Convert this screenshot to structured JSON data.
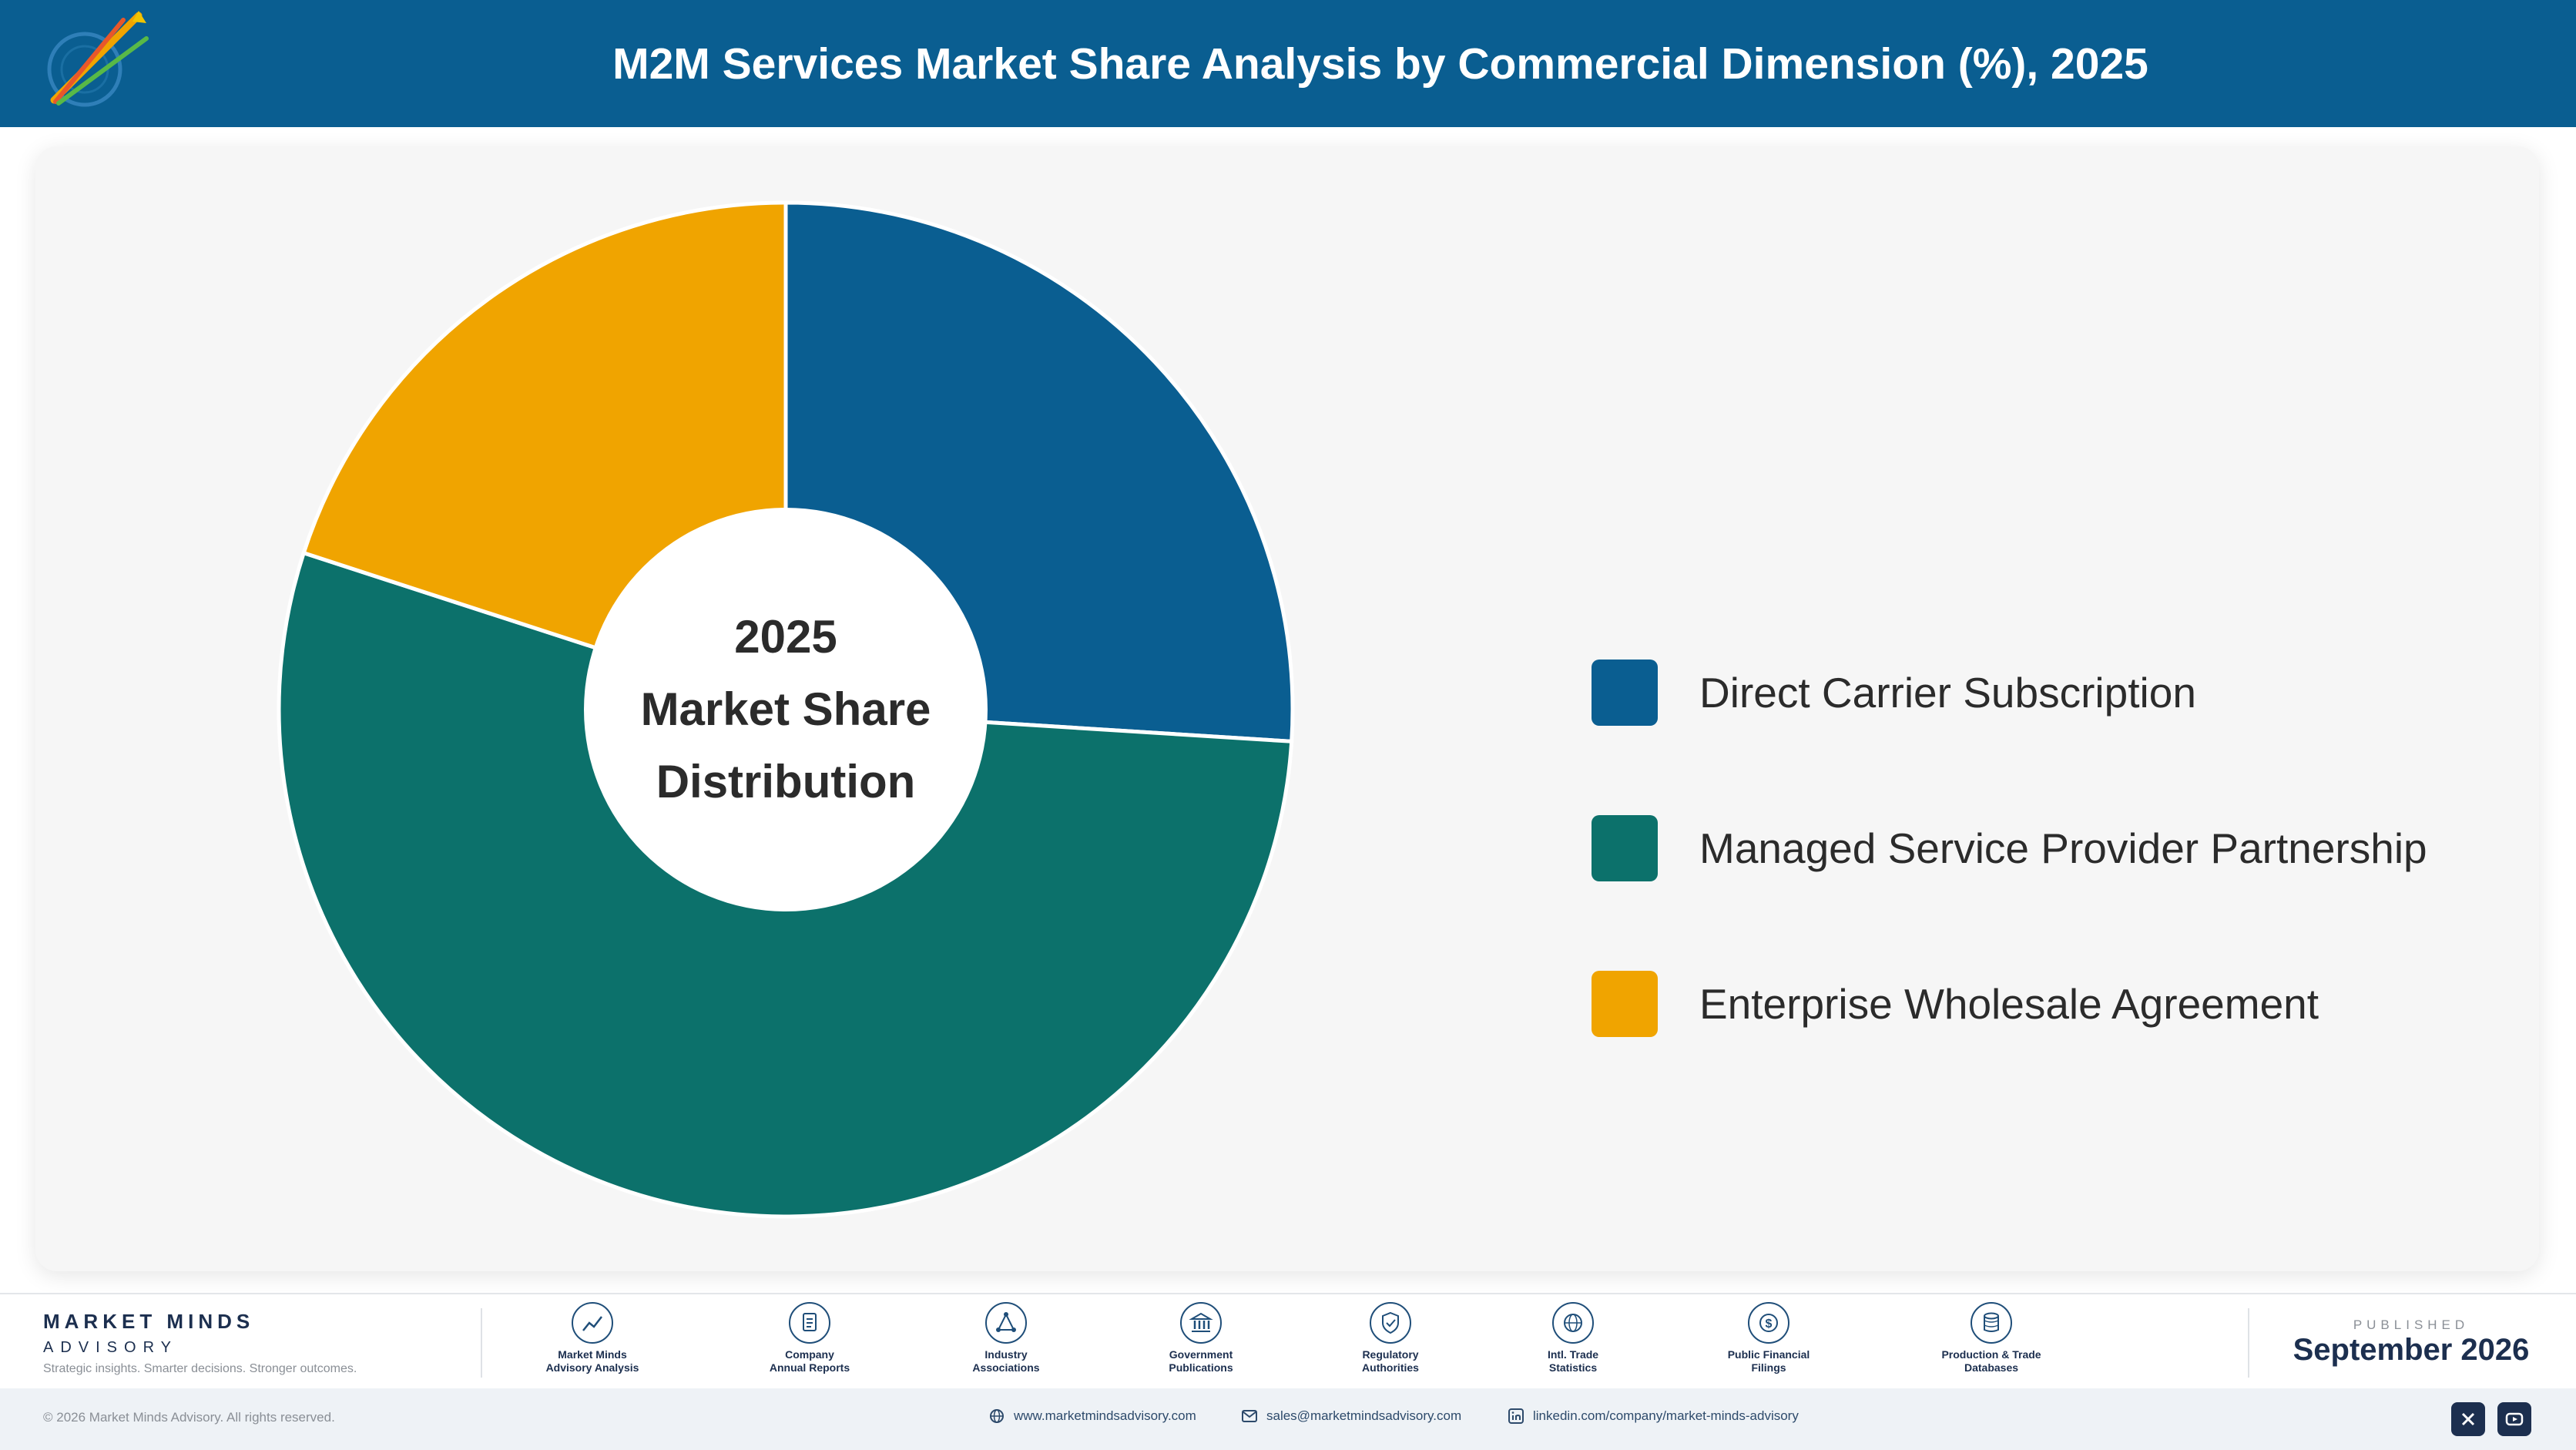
{
  "header": {
    "title": "M2M Services Market Share Analysis by Commercial Dimension (%), 2025"
  },
  "chart_data": {
    "type": "pie",
    "center_label": [
      "2025",
      "Market Share",
      "Distribution"
    ],
    "categories": [
      "Direct Carrier Subscription",
      "Managed Service Provider Partnership",
      "Enterprise Wholesale Agreement"
    ],
    "values": [
      26,
      54,
      20
    ],
    "colors": [
      "#0a5e91",
      "#0c716b",
      "#f0a400"
    ],
    "donut": true,
    "legend_position": "right"
  },
  "footer": {
    "brand_name": "MARKET MINDS",
    "brand_sub": "ADVISORY",
    "tagline": "Strategic insights. Smarter decisions. Stronger outcomes.",
    "sources": [
      {
        "label": "Market Minds\nAdvisory Analysis",
        "icon": "trend-icon"
      },
      {
        "label": "Company\nAnnual Reports",
        "icon": "document-icon"
      },
      {
        "label": "Industry\nAssociations",
        "icon": "network-icon"
      },
      {
        "label": "Government\nPublications",
        "icon": "building-icon"
      },
      {
        "label": "Regulatory\nAuthorities",
        "icon": "shield-icon"
      },
      {
        "label": "Intl. Trade\nStatistics",
        "icon": "globe-icon"
      },
      {
        "label": "Public Financial\nFilings",
        "icon": "dollar-icon"
      },
      {
        "label": "Production & Trade\nDatabases",
        "icon": "database-icon"
      }
    ],
    "published_label": "PUBLISHED",
    "published_date": "September 2026"
  },
  "bottom": {
    "copyright": "© 2026 Market Minds Advisory. All rights reserved.",
    "website": "www.marketmindsadvisory.com",
    "email": "sales@marketmindsadvisory.com",
    "linkedin": "linkedin.com/company/market-minds-advisory"
  }
}
